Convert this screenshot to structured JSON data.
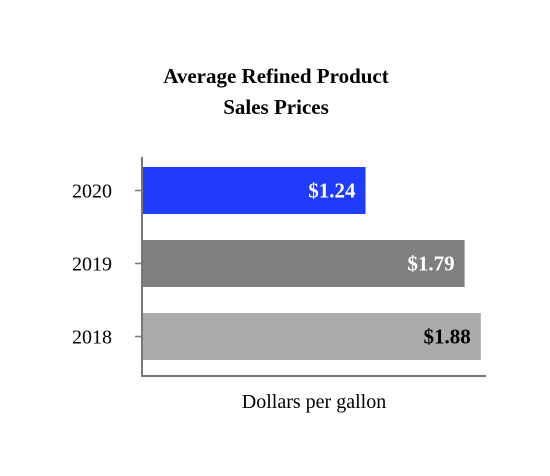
{
  "chart_data": {
    "type": "bar",
    "orientation": "horizontal",
    "title_lines": [
      "Average Refined Product",
      "Sales Prices"
    ],
    "xlabel": "Dollars per gallon",
    "ylabel": "",
    "categories": [
      "2020",
      "2019",
      "2018"
    ],
    "values": [
      1.24,
      1.79,
      1.88
    ],
    "value_labels": [
      "$1.24",
      "$1.79",
      "$1.88"
    ],
    "xlim": [
      0,
      1.92
    ],
    "bar_colors": [
      "#1f3cfb",
      "#7f7f7f",
      "#ababab"
    ],
    "value_label_colors": [
      "#ffffff",
      "#ffffff",
      "#000000"
    ],
    "grid": false,
    "legend": "none"
  }
}
